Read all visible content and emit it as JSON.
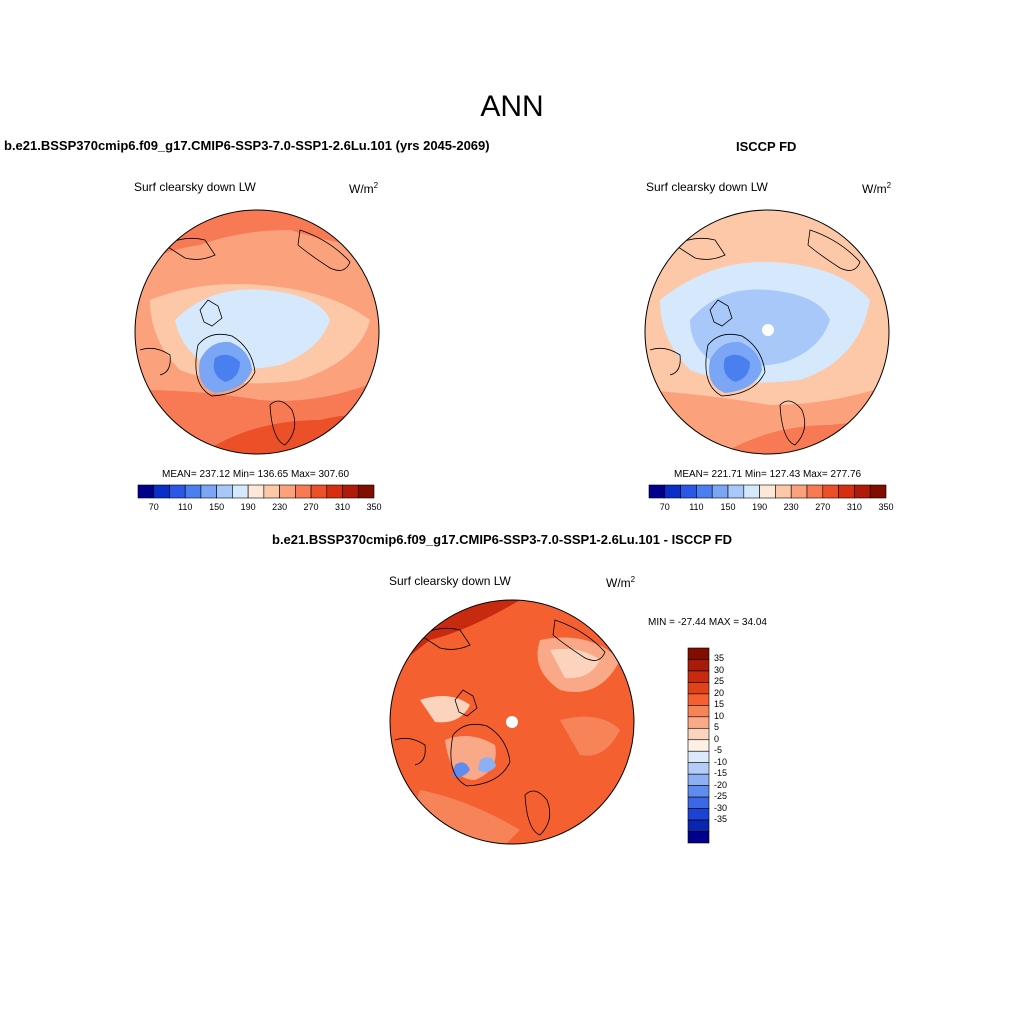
{
  "main_title": "ANN",
  "panels": {
    "model": {
      "case": "b.e21.BSSP370cmip6.f09_g17.CMIP6-SSP3-7.0-SSP1-2.6Lu.101 (yrs 2045-2069)",
      "variable": "Surf clearsky down LW",
      "units": "W/m",
      "units_sup": "2",
      "stats": "MEAN= 237.12  Min= 136.65  Max= 307.60"
    },
    "obs": {
      "case": "ISCCP FD",
      "variable": "Surf clearsky down LW",
      "units": "W/m",
      "units_sup": "2",
      "stats": "MEAN= 221.71  Min= 127.43  Max= 277.76"
    },
    "diff": {
      "case": "b.e21.BSSP370cmip6.f09_g17.CMIP6-SSP3-7.0-SSP1-2.6Lu.101 - ISCCP FD",
      "variable": "Surf clearsky down LW",
      "units": "W/m",
      "units_sup": "2",
      "stats": "MIN = -27.44 MAX =  34.04"
    }
  },
  "colorbar_abs": {
    "colors": [
      "#00008b",
      "#0a2fc8",
      "#2a57e6",
      "#4a7ff0",
      "#7aa6f5",
      "#a8c8fa",
      "#d6e8fb",
      "#fde7d6",
      "#fcc8a8",
      "#fba27c",
      "#f77a55",
      "#ec5028",
      "#d82e10",
      "#b01a08",
      "#830c00"
    ],
    "labels": [
      "70",
      "110",
      "150",
      "190",
      "230",
      "270",
      "310",
      "350"
    ]
  },
  "colorbar_diff": {
    "colors": [
      "#830c00",
      "#a81a0a",
      "#c82a10",
      "#e24218",
      "#f46030",
      "#f78458",
      "#f9a888",
      "#fcd4bd",
      "#fdf0e4",
      "#dbe9fb",
      "#b4cdf8",
      "#8cb0f3",
      "#5f8cee",
      "#3b68e6",
      "#1c43d4",
      "#0a25b0",
      "#00008b"
    ],
    "labels": [
      "35",
      "30",
      "25",
      "20",
      "15",
      "10",
      "5",
      "0",
      "-5",
      "-10",
      "-15",
      "-20",
      "-25",
      "-30",
      "-35"
    ]
  },
  "colors": {
    "land_outline": "#000000",
    "ice_blue": "#d6e8fb",
    "greenland_blue": "#7aa6f5",
    "warm": "#f77a55"
  }
}
